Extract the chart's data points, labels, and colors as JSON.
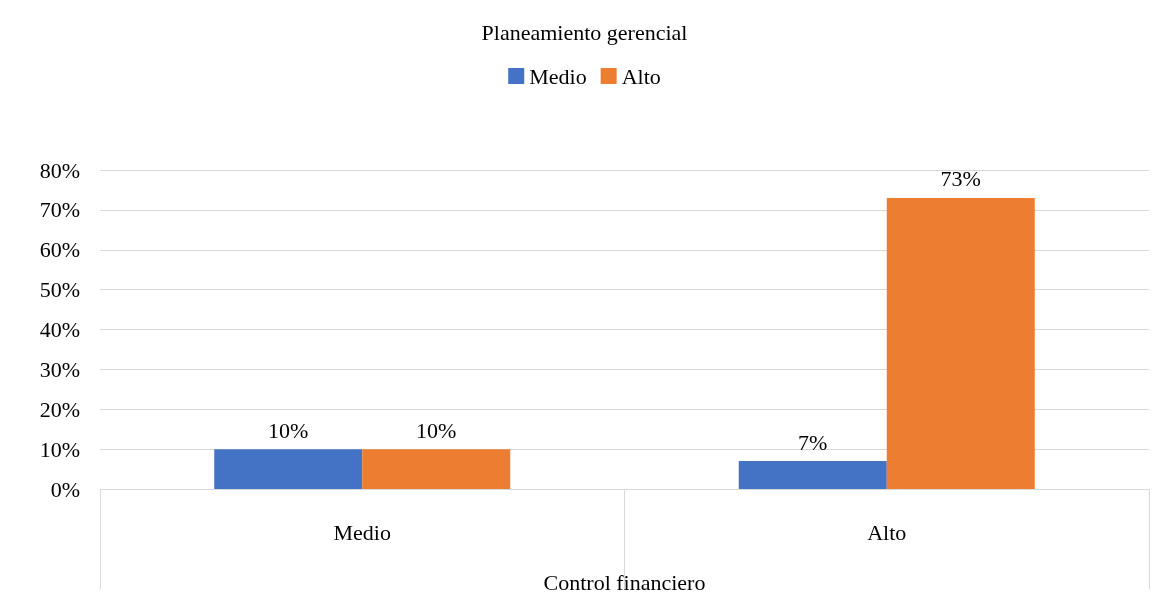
{
  "chart_data": {
    "type": "bar",
    "title": "Planeamiento gerencial",
    "xlabel": "Control financiero",
    "categories": [
      "Medio",
      "Alto"
    ],
    "series": [
      {
        "name": "Medio",
        "color": "#4472c4",
        "values": [
          10,
          7
        ],
        "value_labels": [
          "10%",
          "7%"
        ]
      },
      {
        "name": "Alto",
        "color": "#ed7d31",
        "values": [
          10,
          73
        ],
        "value_labels": [
          "10%",
          "73%"
        ]
      }
    ],
    "ylim": [
      0,
      80
    ],
    "yticks": [
      {
        "value": 0,
        "label": "0%"
      },
      {
        "value": 10,
        "label": "10%"
      },
      {
        "value": 20,
        "label": "20%"
      },
      {
        "value": 30,
        "label": "30%"
      },
      {
        "value": 40,
        "label": "40%"
      },
      {
        "value": 50,
        "label": "50%"
      },
      {
        "value": 60,
        "label": "60%"
      },
      {
        "value": 70,
        "label": "70%"
      },
      {
        "value": 80,
        "label": "80%"
      }
    ],
    "grid": "y",
    "legend": "top"
  }
}
